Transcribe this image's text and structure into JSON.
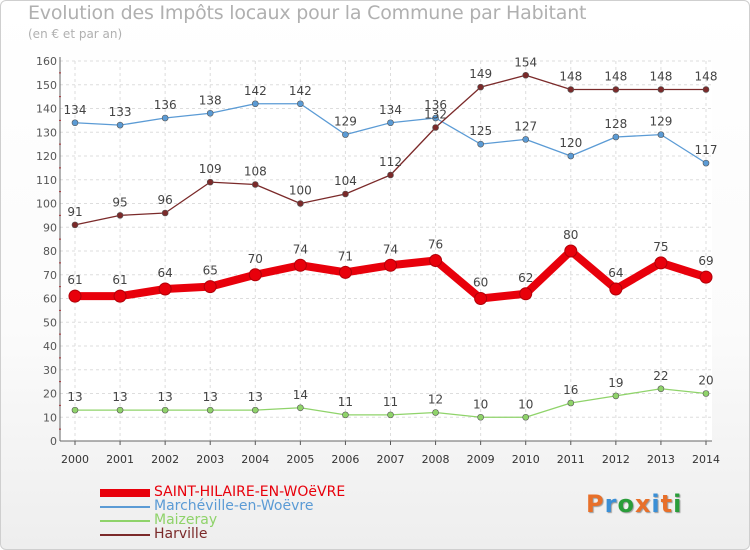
{
  "header": {
    "title": "Evolution des Impôts locaux pour la Commune par Habitant",
    "subtitle": "(en € et par an)"
  },
  "logo": {
    "text": "Proxiti",
    "colors": [
      "#e8702a",
      "#3a8fd6",
      "#2a9d3a",
      "#e8702a",
      "#3a8fd6",
      "#e8702a",
      "#2a9d3a"
    ]
  },
  "chart_data": {
    "type": "line",
    "title": "Evolution des Impôts locaux pour la Commune par Habitant",
    "subtitle": "(en € et par an)",
    "x": [
      "2000",
      "2001",
      "2002",
      "2003",
      "2004",
      "2005",
      "2006",
      "2007",
      "2008",
      "2009",
      "2010",
      "2011",
      "2012",
      "2013",
      "2014"
    ],
    "ylim": [
      0,
      160
    ],
    "yticks": [
      0,
      10,
      20,
      30,
      40,
      50,
      60,
      70,
      80,
      90,
      100,
      110,
      120,
      130,
      140,
      150,
      160
    ],
    "grid": true,
    "legend_position": "bottom-left",
    "series": [
      {
        "name": "SAINT-HILAIRE-EN-WOëVRE",
        "color": "#e8000b",
        "values": [
          61,
          61,
          64,
          65,
          70,
          74,
          71,
          74,
          76,
          60,
          62,
          80,
          64,
          75,
          69
        ]
      },
      {
        "name": "Marchéville-en-Woëvre",
        "color": "#5b9bd5",
        "values": [
          134,
          133,
          136,
          138,
          142,
          142,
          129,
          134,
          136,
          125,
          127,
          120,
          128,
          129,
          117
        ]
      },
      {
        "name": "Maizeray",
        "color": "#8fd36a",
        "values": [
          13,
          13,
          13,
          13,
          13,
          14,
          11,
          11,
          12,
          10,
          10,
          16,
          19,
          22,
          20
        ]
      },
      {
        "name": "Harville",
        "color": "#7b2a2a",
        "values": [
          91,
          95,
          96,
          109,
          108,
          100,
          104,
          112,
          132,
          149,
          154,
          148,
          148,
          148,
          148
        ]
      }
    ]
  }
}
